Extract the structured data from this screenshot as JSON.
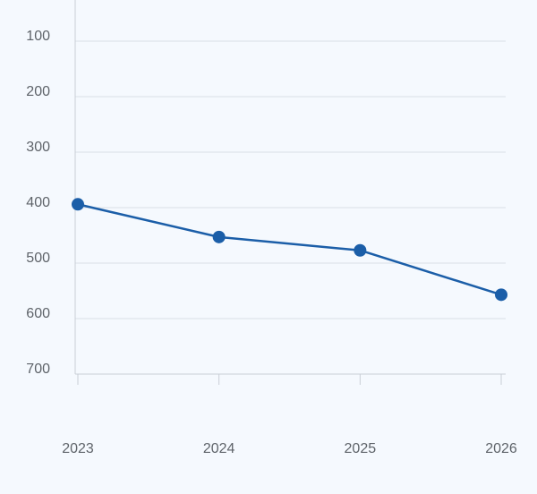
{
  "chart_data": {
    "type": "line",
    "title": "",
    "xlabel": "",
    "ylabel": "",
    "categories": [
      "2023",
      "2024",
      "2025",
      "2026"
    ],
    "series": [
      {
        "values": [
          394,
          453,
          477,
          557
        ],
        "color": "#1b5ea8"
      }
    ],
    "y_axis": {
      "reversed": true,
      "ylim": [
        0,
        700
      ],
      "ticks": [
        100,
        200,
        300,
        400,
        500,
        600,
        700
      ],
      "tick_labels": [
        "100",
        "200",
        "300",
        "400",
        "500",
        "600",
        "700"
      ]
    },
    "x_tick_labels": [
      "2023",
      "2024",
      "2025",
      "2026"
    ],
    "grid": "horizontal",
    "legend": "none",
    "colors": {
      "background": "#f5f9fe",
      "line": "#1b5ea8",
      "grid": "#d9dee5",
      "text": "#5e6369"
    }
  }
}
